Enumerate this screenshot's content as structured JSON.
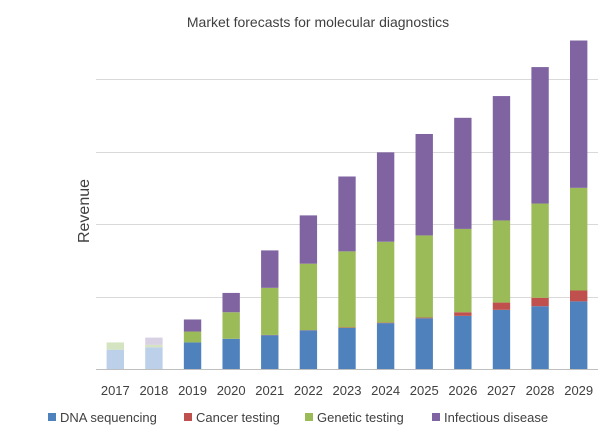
{
  "chart_data": {
    "type": "bar",
    "stacked": true,
    "title": "Market forecasts for molecular diagnostics",
    "xlabel": "",
    "ylabel": "Revenue",
    "categories": [
      "2017",
      "2018",
      "2019",
      "2020",
      "2021",
      "2022",
      "2023",
      "2024",
      "2025",
      "2026",
      "2027",
      "2028",
      "2029"
    ],
    "series": [
      {
        "name": "DNA sequencing",
        "color": "#4f81bd",
        "faded_color": "#bdd0ea",
        "values": [
          0.8,
          0.9,
          1.1,
          1.25,
          1.4,
          1.6,
          1.7,
          1.9,
          2.1,
          2.2,
          2.45,
          2.6,
          2.8
        ]
      },
      {
        "name": "Cancer testing",
        "color": "#c0504d",
        "faded_color": "#eacdcc",
        "values": [
          0,
          0,
          0,
          0,
          0.01,
          0.01,
          0.02,
          0.02,
          0.03,
          0.15,
          0.3,
          0.35,
          0.45
        ]
      },
      {
        "name": "Genetic testing",
        "color": "#9bbb59",
        "faded_color": "#d4e4c0",
        "values": [
          0.3,
          0.1,
          0.45,
          1.1,
          1.95,
          2.75,
          3.15,
          3.35,
          3.4,
          3.45,
          3.4,
          3.9,
          4.25
        ]
      },
      {
        "name": "Infectious disease",
        "color": "#8064a2",
        "faded_color": "#d8d0e3",
        "values": [
          0,
          0.3,
          0.5,
          0.8,
          1.55,
          2.0,
          3.1,
          3.7,
          4.2,
          4.6,
          5.15,
          5.65,
          6.1
        ]
      }
    ],
    "faded_categories": [
      "2017",
      "2018"
    ],
    "ylim": [
      0,
      13
    ],
    "ytick_step": 3,
    "grid": true,
    "legend_position": "bottom"
  }
}
